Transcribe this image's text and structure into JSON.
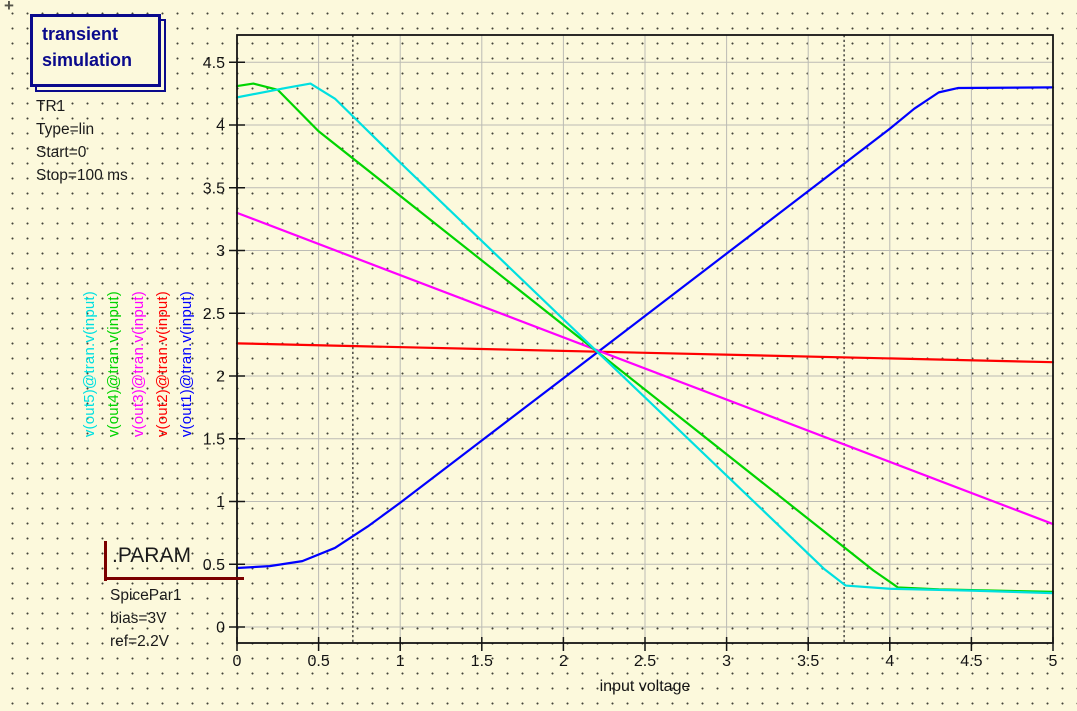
{
  "page": {
    "plus_mark": "+"
  },
  "sim_box": {
    "lines": [
      "transient",
      "simulation"
    ],
    "accent": "#0A0A8C"
  },
  "sim_params": {
    "lines": [
      "TR1",
      "Type=lin",
      "Start=0",
      "Stop=100 ms"
    ]
  },
  "param_box": {
    "title": ".PARAM",
    "lines": [
      "SpicePar1",
      "bias=3V",
      "ref=2.2V"
    ],
    "accent": "#7B0000"
  },
  "chart_data": {
    "type": "line",
    "title": "",
    "xlabel": "input voltage",
    "ylabel": "",
    "xlim": [
      0,
      5
    ],
    "ylim": [
      -0.13,
      4.72
    ],
    "grid": true,
    "legend_position": "left-rotated",
    "x_tick_values": [
      0,
      0.5,
      1,
      1.5,
      2,
      2.5,
      3,
      3.5,
      4,
      4.5,
      5
    ],
    "x_tick_labels": [
      "0",
      "0.5",
      "1",
      "1.5",
      "2",
      "2.5",
      "3",
      "3.5",
      "4",
      "4.5",
      "5"
    ],
    "y_tick_values": [
      0,
      0.5,
      1,
      1.5,
      2,
      2.5,
      3,
      3.5,
      4,
      4.5
    ],
    "y_tick_labels": [
      "0",
      "0.5",
      "1",
      "1.5",
      "2",
      "2.5",
      "3",
      "3.5",
      "4",
      "4.5"
    ],
    "cursor_lines_x": [
      0.71,
      3.72
    ],
    "crossing_point": [
      2.2,
      2.2
    ],
    "series": [
      {
        "name": "v(out1)@tran.v(input)",
        "color": "#0000ff",
        "points": [
          [
            0,
            0.47
          ],
          [
            0.2,
            0.485
          ],
          [
            0.4,
            0.525
          ],
          [
            0.6,
            0.63
          ],
          [
            0.8,
            0.8
          ],
          [
            1.0,
            0.99
          ],
          [
            2.21,
            2.19
          ],
          [
            4.0,
            3.97
          ],
          [
            4.15,
            4.13
          ],
          [
            4.3,
            4.26
          ],
          [
            4.42,
            4.295
          ],
          [
            5,
            4.3
          ]
        ]
      },
      {
        "name": "v(out2)@tran.v(input)",
        "color": "#ff0000",
        "points": [
          [
            0,
            2.26
          ],
          [
            5,
            2.11
          ]
        ]
      },
      {
        "name": "v(out3)@tran.v(input)",
        "color": "#ff00ff",
        "points": [
          [
            0,
            3.3
          ],
          [
            5,
            0.82
          ]
        ]
      },
      {
        "name": "v(out4)@tran.v(input)",
        "color": "#00d400",
        "points": [
          [
            0,
            4.31
          ],
          [
            0.1,
            4.33
          ],
          [
            0.25,
            4.28
          ],
          [
            0.5,
            3.95
          ],
          [
            2.21,
            2.19
          ],
          [
            3.9,
            0.45
          ],
          [
            4.05,
            0.315
          ],
          [
            4.3,
            0.3
          ],
          [
            5,
            0.28
          ]
        ]
      },
      {
        "name": "v(out5)@tran.v(input)",
        "color": "#00e0e0",
        "points": [
          [
            0,
            4.22
          ],
          [
            0.3,
            4.295
          ],
          [
            0.45,
            4.33
          ],
          [
            0.6,
            4.21
          ],
          [
            1.0,
            3.7
          ],
          [
            2.21,
            2.19
          ],
          [
            3.6,
            0.46
          ],
          [
            3.73,
            0.33
          ],
          [
            4.0,
            0.305
          ],
          [
            4.5,
            0.29
          ],
          [
            5,
            0.27
          ]
        ]
      }
    ]
  }
}
